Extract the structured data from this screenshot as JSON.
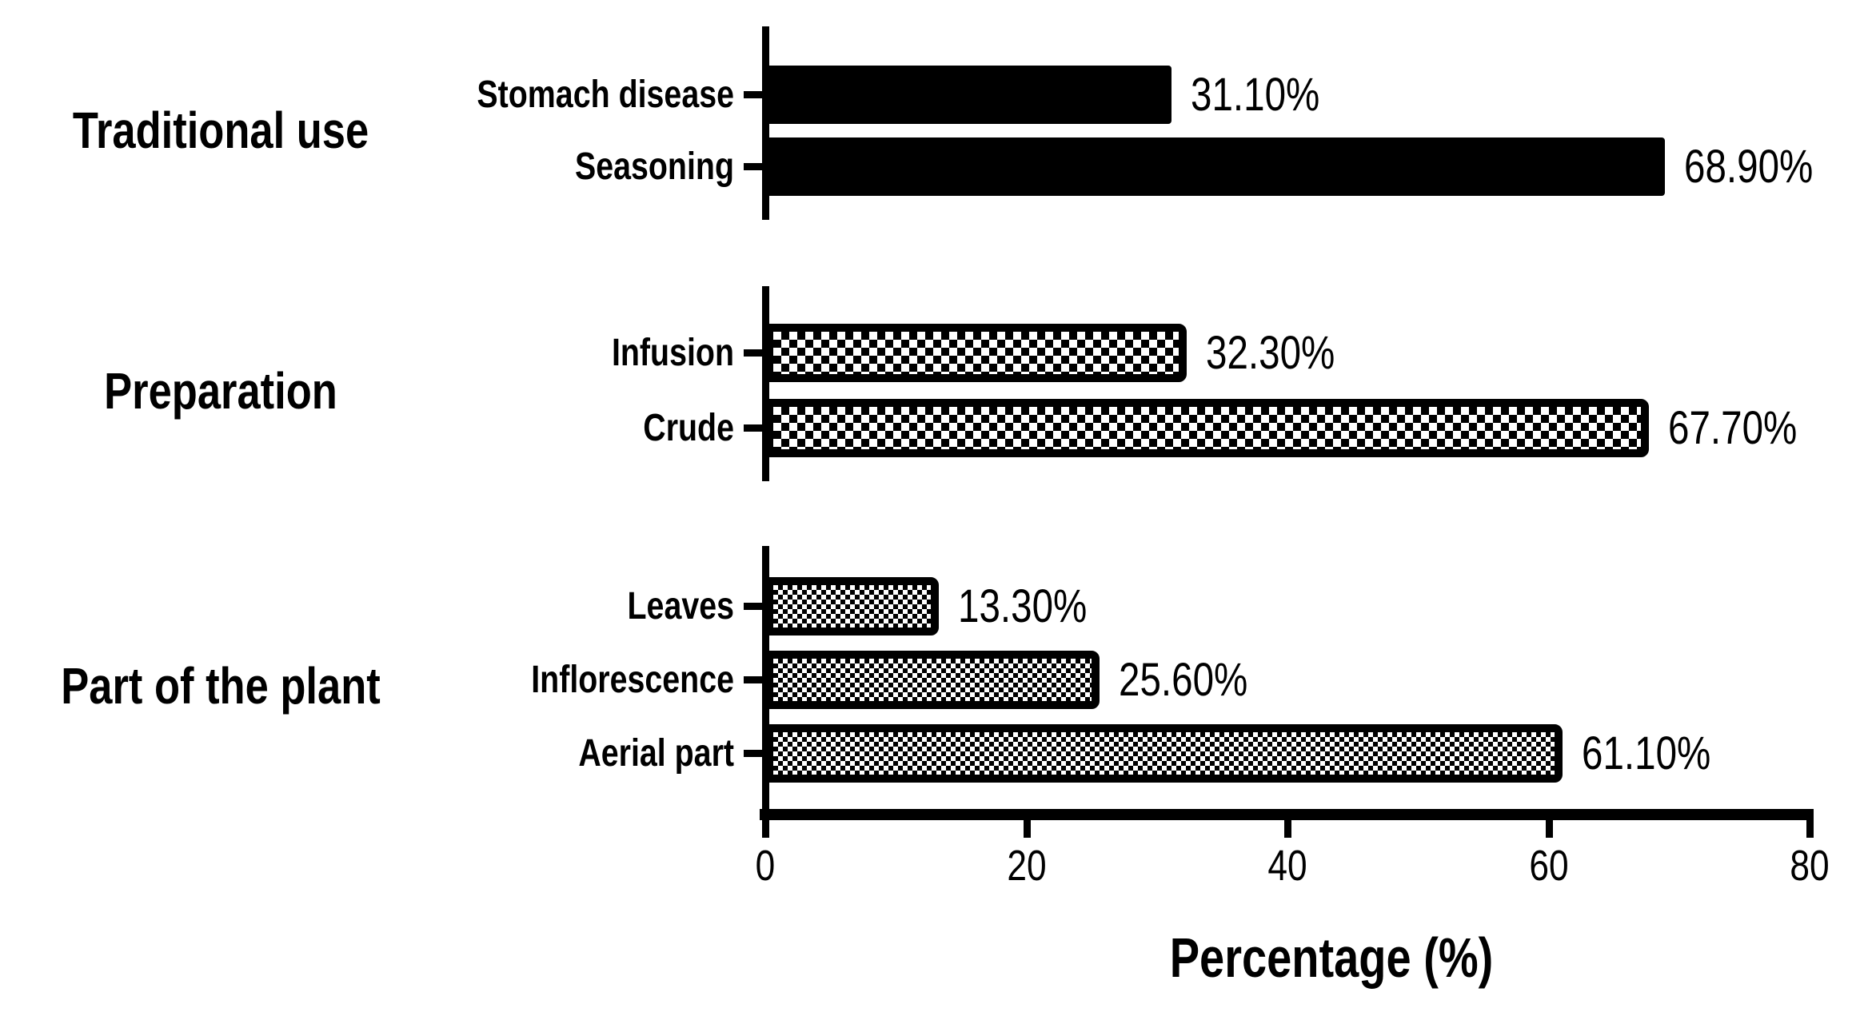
{
  "chart_data": {
    "type": "bar",
    "orientation": "horizontal",
    "title": "",
    "xlabel": "Percentage (%)",
    "ylabel": "",
    "xlim": [
      0,
      80
    ],
    "x_ticks": [
      "0",
      "20",
      "40",
      "60",
      "80"
    ],
    "grid": false,
    "legend": false,
    "background_color": "#ffffff",
    "bar_color": "#000000",
    "text_color": "#000000",
    "groups": [
      {
        "label": "Traditional use",
        "pattern": "solid",
        "bars": [
          {
            "category": "Stomach disease",
            "value": 31.1,
            "value_label": "31.10%"
          },
          {
            "category": "Seasoning",
            "value": 68.9,
            "value_label": "68.90%"
          }
        ]
      },
      {
        "label": "Preparation",
        "pattern": "checker-coarse",
        "bars": [
          {
            "category": "Infusion",
            "value": 32.3,
            "value_label": "32.30%"
          },
          {
            "category": "Crude",
            "value": 67.7,
            "value_label": "67.70%"
          }
        ]
      },
      {
        "label": "Part of the plant",
        "pattern": "checker-fine",
        "bars": [
          {
            "category": "Leaves",
            "value": 13.3,
            "value_label": "13.30%"
          },
          {
            "category": "Inflorescence",
            "value": 25.6,
            "value_label": "25.60%"
          },
          {
            "category": "Aerial part",
            "value": 61.1,
            "value_label": "61.10%"
          }
        ]
      }
    ]
  }
}
